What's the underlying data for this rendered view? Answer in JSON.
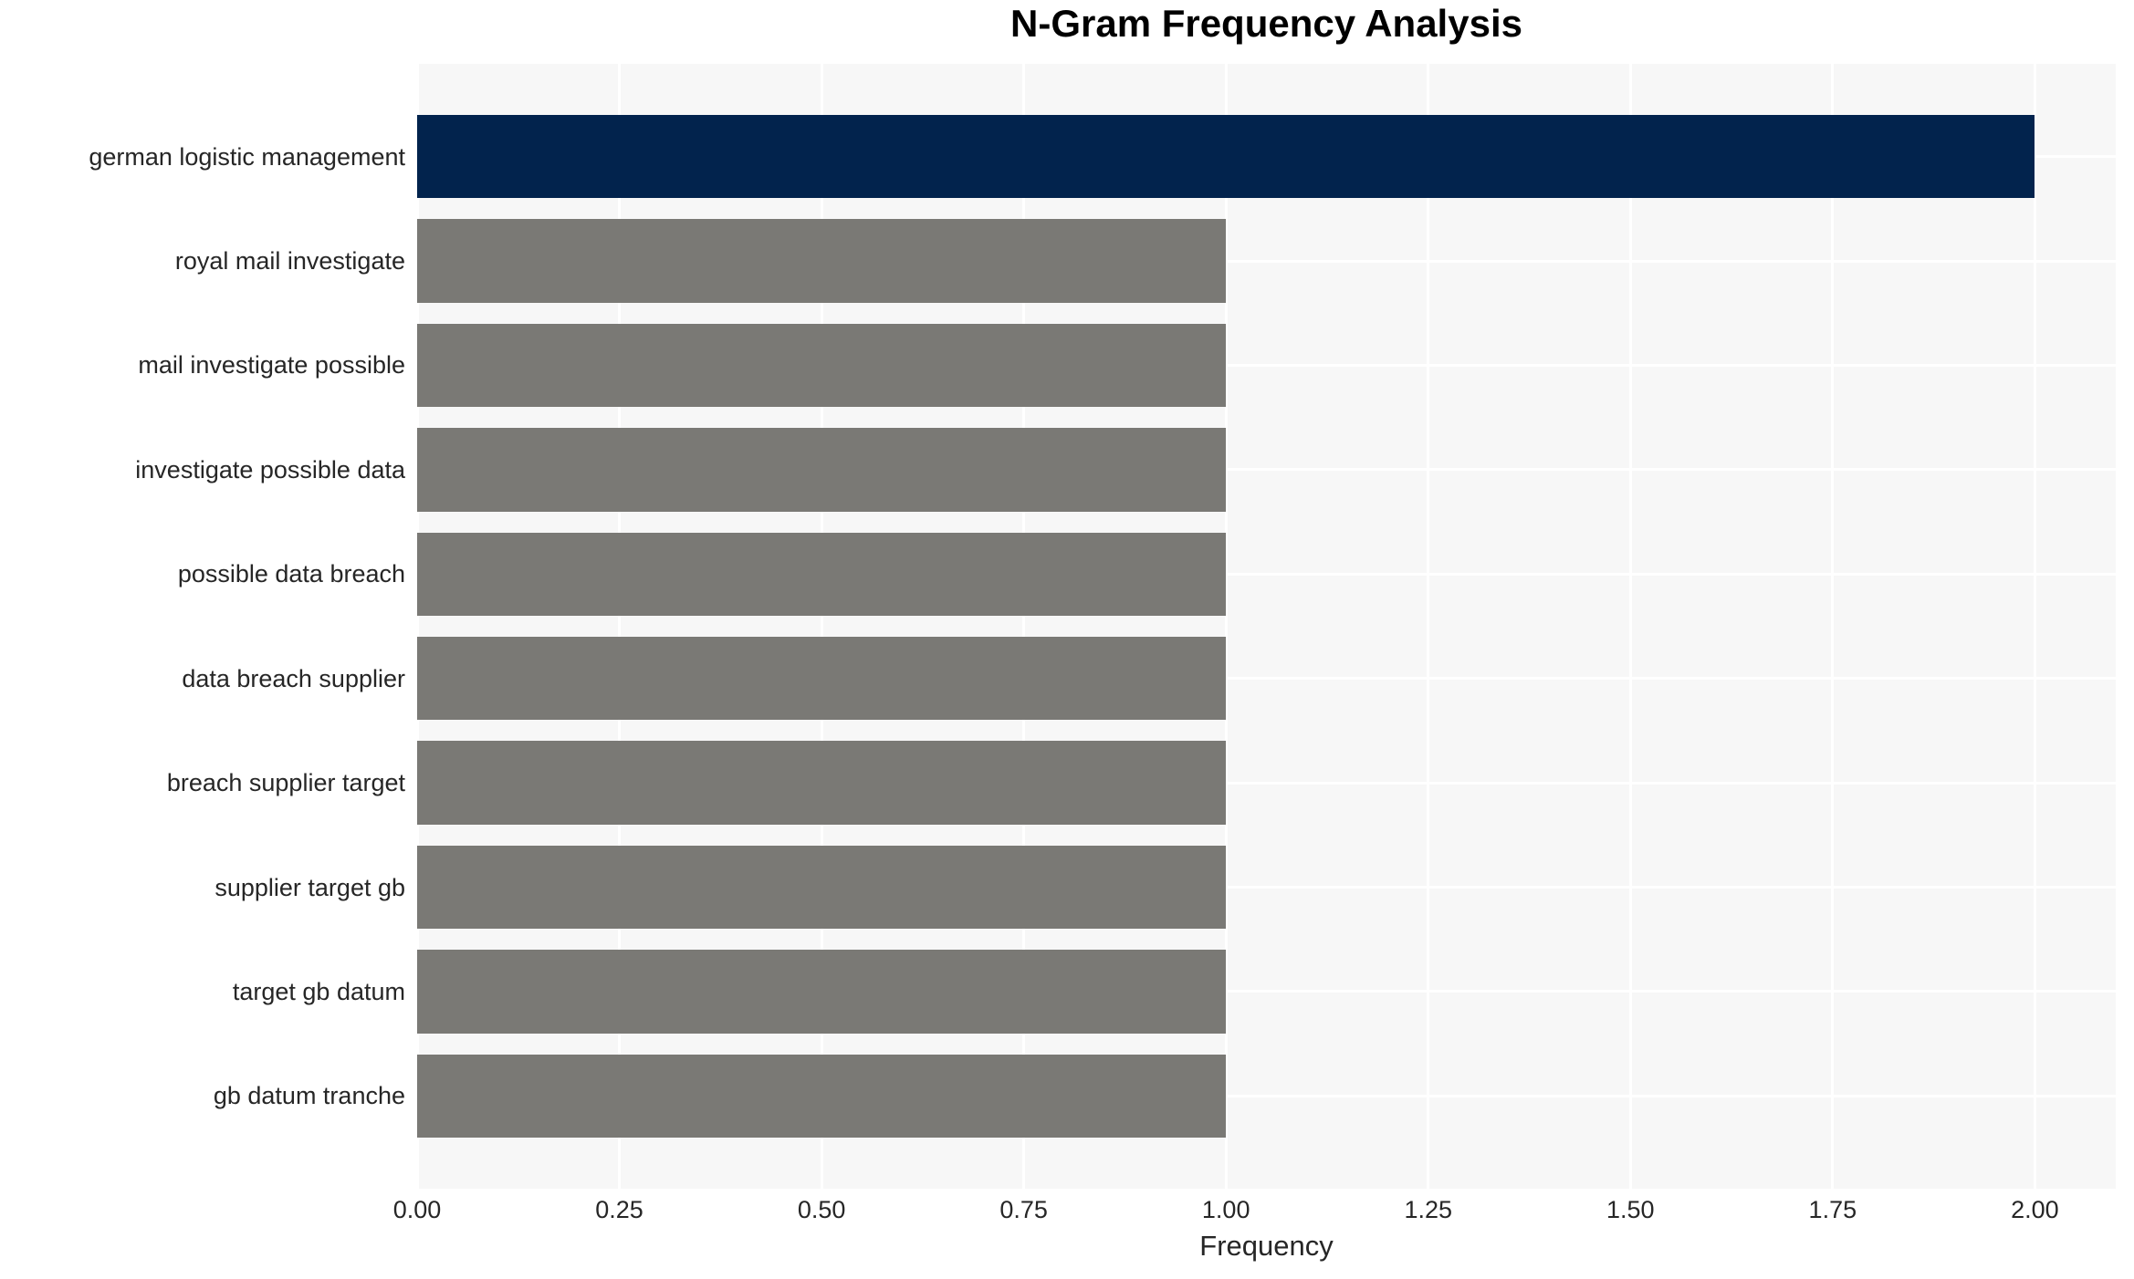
{
  "chart_data": {
    "type": "bar",
    "orientation": "horizontal",
    "title": "N-Gram Frequency Analysis",
    "xlabel": "Frequency",
    "ylabel": "",
    "categories": [
      "german logistic management",
      "royal mail investigate",
      "mail investigate possible",
      "investigate possible data",
      "possible data breach",
      "data breach supplier",
      "breach supplier target",
      "supplier target gb",
      "target gb datum",
      "gb datum tranche"
    ],
    "values": [
      2,
      1,
      1,
      1,
      1,
      1,
      1,
      1,
      1,
      1
    ],
    "bar_colors": [
      "#02234d",
      "#7a7975",
      "#7a7975",
      "#7a7975",
      "#7a7975",
      "#7a7975",
      "#7a7975",
      "#7a7975",
      "#7a7975",
      "#7a7975"
    ],
    "highlight_color": "#02234d",
    "default_bar_color": "#7a7975",
    "xlim": [
      0,
      2.1
    ],
    "xticks": [
      0,
      0.25,
      0.5,
      0.75,
      1.0,
      1.25,
      1.5,
      1.75,
      2.0
    ],
    "xtick_labels": [
      "0.00",
      "0.25",
      "0.50",
      "0.75",
      "1.00",
      "1.25",
      "1.50",
      "1.75",
      "2.00"
    ],
    "grid": true,
    "grid_color": "#ffffff",
    "plot_background": "#f7f7f7",
    "legend": false
  }
}
